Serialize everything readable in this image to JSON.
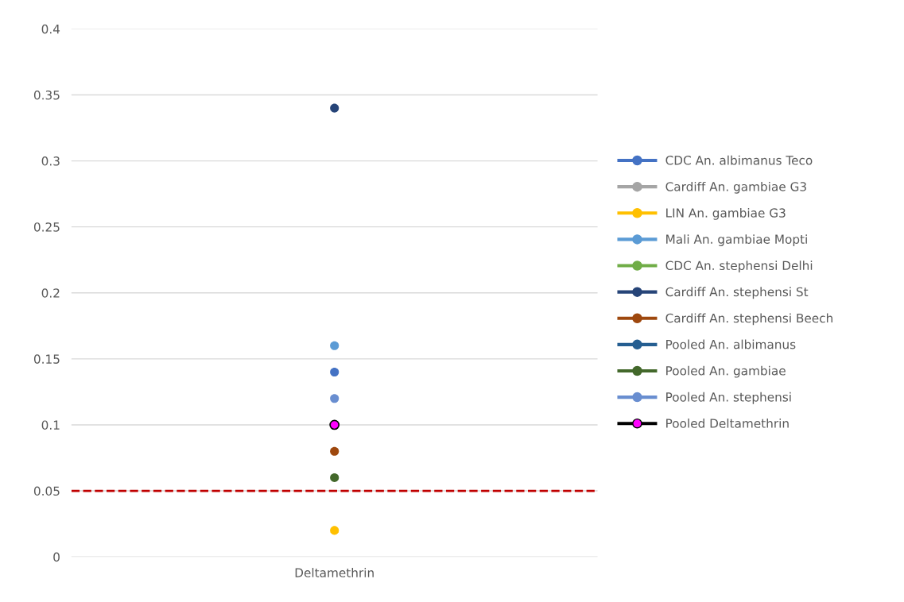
{
  "chart_data": {
    "type": "line",
    "categories": [
      "Deltamethrin"
    ],
    "ylim": [
      0,
      0.4
    ],
    "yticks": [
      0,
      0.05,
      0.1,
      0.15,
      0.2,
      0.25,
      0.3,
      0.35,
      0.4
    ],
    "grid": "y",
    "legend": "right",
    "marker": "circle",
    "series": [
      {
        "name": "CDC An. albimanus Teco",
        "color": "#4472c4",
        "values": [
          0.14
        ]
      },
      {
        "name": "Cardiff An. gambiae G3",
        "color": "#a5a5a5",
        "values": [
          null
        ]
      },
      {
        "name": "LIN An. gambiae G3",
        "color": "#ffc000",
        "values": [
          0.02
        ]
      },
      {
        "name": "Mali An. gambiae Mopti",
        "color": "#5b9bd5",
        "values": [
          0.16
        ]
      },
      {
        "name": "CDC An. stephensi Delhi",
        "color": "#70ad47",
        "values": [
          null
        ]
      },
      {
        "name": "Cardiff An. stephensi St",
        "color": "#264478",
        "values": [
          0.34
        ]
      },
      {
        "name": "Cardiff An. stephensi Beech",
        "color": "#9e480e",
        "values": [
          0.08
        ]
      },
      {
        "name": "Pooled An. albimanus",
        "color": "#255e91",
        "values": [
          null
        ]
      },
      {
        "name": "Pooled An. gambiae",
        "color": "#43682b",
        "values": [
          0.06
        ]
      },
      {
        "name": "Pooled An. stephensi",
        "color": "#698ed0",
        "values": [
          0.12
        ]
      },
      {
        "name": "Pooled Deltamethrin",
        "color": "#000000",
        "colors": [
          "#ff00ff"
        ],
        "values": [
          0.1
        ]
      }
    ],
    "ref_lines": [
      {
        "axis": "y",
        "value": 0.05,
        "label": null,
        "color": "#c00000",
        "line_style": "dashed"
      }
    ]
  }
}
